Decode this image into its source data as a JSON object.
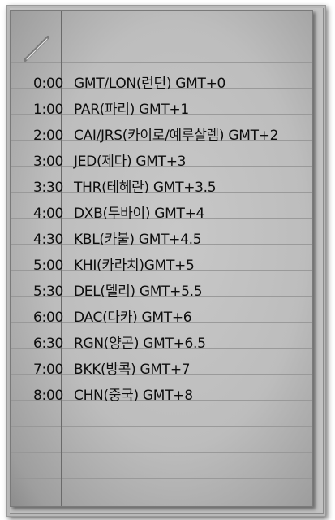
{
  "timezones": [
    {
      "time": "0:00",
      "zone": "GMT/LON(런던)  GMT+0"
    },
    {
      "time": "1:00",
      "zone": "PAR(파리)  GMT+1"
    },
    {
      "time": "2:00",
      "zone": "CAI/JRS(카이로/예루살렘) GMT+2"
    },
    {
      "time": "3:00",
      "zone": "JED(제다)  GMT+3"
    },
    {
      "time": "3:30",
      "zone": "THR(테헤란) GMT+3.5"
    },
    {
      "time": "4:00",
      "zone": "DXB(두바이) GMT+4"
    },
    {
      "time": "4:30",
      "zone": "KBL(카불)  GMT+4.5"
    },
    {
      "time": "5:00",
      "zone": "KHI(카라치)GMT+5"
    },
    {
      "time": "5:30",
      "zone": "DEL(델리)  GMT+5.5"
    },
    {
      "time": "6:00",
      "zone": "DAC(다카)  GMT+6"
    },
    {
      "time": "6:30",
      "zone": "RGN(양곤)  GMT+6.5"
    },
    {
      "time": "7:00",
      "zone": "BKK(방콕)  GMT+7"
    },
    {
      "time": "8:00",
      "zone": "CHN(중국)  GMT+8"
    }
  ],
  "icons": {
    "pencil": "pencil-icon"
  }
}
